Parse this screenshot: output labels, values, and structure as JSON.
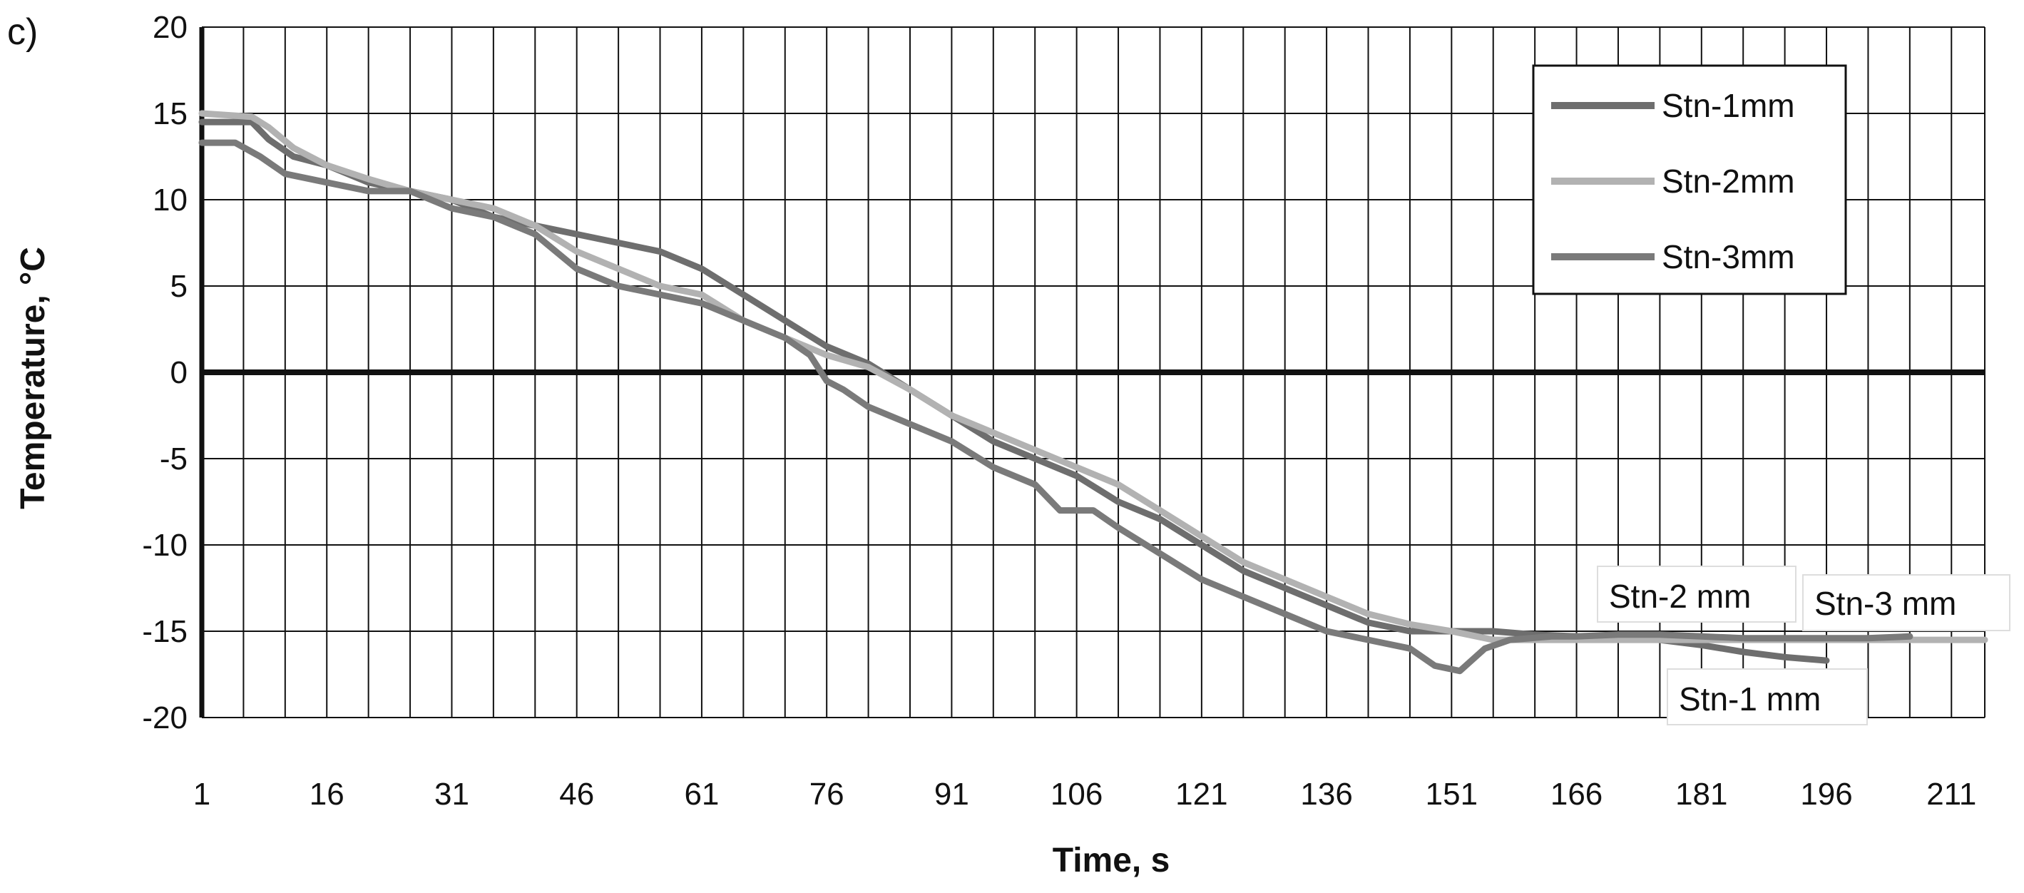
{
  "panel_label": "c)",
  "chart_data": {
    "type": "line",
    "xlabel": "Time, s",
    "ylabel": "Temperature, °C",
    "xlim": [
      1,
      215
    ],
    "ylim": [
      -20,
      20
    ],
    "x_ticks": [
      1,
      16,
      31,
      46,
      61,
      76,
      91,
      106,
      121,
      136,
      151,
      166,
      181,
      196,
      211
    ],
    "y_ticks": [
      20,
      15,
      10,
      5,
      0,
      -5,
      -10,
      -15,
      -20
    ],
    "grid": true,
    "legend_position": "top-right",
    "series": [
      {
        "name": "Stn-1mm",
        "color": "#6e6e6e",
        "points": [
          [
            1,
            14.5
          ],
          [
            7,
            14.5
          ],
          [
            9,
            13.5
          ],
          [
            12,
            12.5
          ],
          [
            16,
            12
          ],
          [
            21,
            11
          ],
          [
            26,
            10.5
          ],
          [
            31,
            10
          ],
          [
            36,
            9
          ],
          [
            41,
            8.5
          ],
          [
            46,
            8
          ],
          [
            51,
            7.5
          ],
          [
            56,
            7
          ],
          [
            61,
            6
          ],
          [
            66,
            4.5
          ],
          [
            71,
            3
          ],
          [
            76,
            1.5
          ],
          [
            81,
            0.5
          ],
          [
            86,
            -1
          ],
          [
            91,
            -2.5
          ],
          [
            96,
            -4
          ],
          [
            101,
            -5
          ],
          [
            106,
            -6
          ],
          [
            111,
            -7.5
          ],
          [
            116,
            -8.5
          ],
          [
            121,
            -10
          ],
          [
            126,
            -11.5
          ],
          [
            131,
            -12.5
          ],
          [
            136,
            -13.5
          ],
          [
            141,
            -14.5
          ],
          [
            146,
            -15
          ],
          [
            151,
            -15
          ],
          [
            156,
            -15
          ],
          [
            161,
            -15.2
          ],
          [
            166,
            -15.3
          ],
          [
            171,
            -15.4
          ],
          [
            176,
            -15.5
          ],
          [
            181,
            -15.8
          ],
          [
            186,
            -16.2
          ],
          [
            191,
            -16.5
          ],
          [
            196,
            -16.7
          ]
        ]
      },
      {
        "name": "Stn-2mm",
        "color": "#b2b2b2",
        "points": [
          [
            1,
            15
          ],
          [
            7,
            14.8
          ],
          [
            9,
            14.2
          ],
          [
            12,
            13
          ],
          [
            16,
            12
          ],
          [
            21,
            11.2
          ],
          [
            26,
            10.5
          ],
          [
            31,
            10
          ],
          [
            36,
            9.5
          ],
          [
            41,
            8.5
          ],
          [
            46,
            7
          ],
          [
            51,
            6
          ],
          [
            56,
            5
          ],
          [
            61,
            4.5
          ],
          [
            66,
            3
          ],
          [
            71,
            2
          ],
          [
            76,
            1
          ],
          [
            81,
            0.3
          ],
          [
            86,
            -1
          ],
          [
            91,
            -2.5
          ],
          [
            96,
            -3.5
          ],
          [
            101,
            -4.5
          ],
          [
            106,
            -5.5
          ],
          [
            111,
            -6.5
          ],
          [
            116,
            -8
          ],
          [
            121,
            -9.5
          ],
          [
            126,
            -11
          ],
          [
            131,
            -12
          ],
          [
            136,
            -13
          ],
          [
            141,
            -14
          ],
          [
            146,
            -14.6
          ],
          [
            151,
            -15
          ],
          [
            156,
            -15.5
          ],
          [
            161,
            -15.5
          ],
          [
            166,
            -15.5
          ],
          [
            171,
            -15.5
          ],
          [
            176,
            -15.5
          ],
          [
            181,
            -15.5
          ],
          [
            186,
            -15.5
          ],
          [
            191,
            -15.5
          ],
          [
            196,
            -15.5
          ],
          [
            201,
            -15.5
          ],
          [
            206,
            -15.5
          ],
          [
            215,
            -15.5
          ]
        ]
      },
      {
        "name": "Stn-3mm",
        "color": "#7a7a7a",
        "points": [
          [
            1,
            13.3
          ],
          [
            5,
            13.3
          ],
          [
            8,
            12.5
          ],
          [
            11,
            11.5
          ],
          [
            16,
            11
          ],
          [
            21,
            10.5
          ],
          [
            26,
            10.5
          ],
          [
            31,
            9.5
          ],
          [
            36,
            9
          ],
          [
            41,
            8
          ],
          [
            46,
            6
          ],
          [
            51,
            5
          ],
          [
            56,
            4.5
          ],
          [
            61,
            4
          ],
          [
            66,
            3
          ],
          [
            71,
            2
          ],
          [
            74,
            1
          ],
          [
            76,
            -0.5
          ],
          [
            78,
            -1
          ],
          [
            81,
            -2
          ],
          [
            86,
            -3
          ],
          [
            91,
            -4
          ],
          [
            96,
            -5.5
          ],
          [
            101,
            -6.5
          ],
          [
            104,
            -8
          ],
          [
            108,
            -8
          ],
          [
            111,
            -9
          ],
          [
            116,
            -10.5
          ],
          [
            121,
            -12
          ],
          [
            126,
            -13
          ],
          [
            131,
            -14
          ],
          [
            136,
            -15
          ],
          [
            141,
            -15.5
          ],
          [
            146,
            -16
          ],
          [
            149,
            -17
          ],
          [
            152,
            -17.3
          ],
          [
            155,
            -16
          ],
          [
            158,
            -15.5
          ],
          [
            163,
            -15.3
          ],
          [
            166,
            -15.3
          ],
          [
            171,
            -15.2
          ],
          [
            176,
            -15.2
          ],
          [
            181,
            -15.3
          ],
          [
            186,
            -15.4
          ],
          [
            191,
            -15.4
          ],
          [
            196,
            -15.4
          ],
          [
            201,
            -15.4
          ],
          [
            206,
            -15.3
          ]
        ]
      }
    ],
    "annotations": [
      {
        "text": "Stn-2 mm"
      },
      {
        "text": "Stn-3 mm"
      },
      {
        "text": "Stn-1 mm"
      }
    ]
  }
}
